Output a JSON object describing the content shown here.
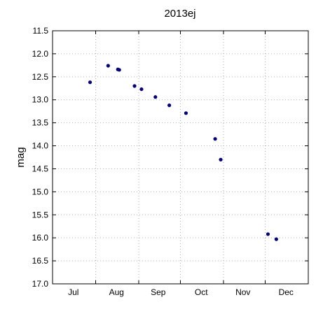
{
  "chart_data": {
    "type": "scatter",
    "title": "2013ej",
    "xlabel": "",
    "ylabel": "mag",
    "x_axis": {
      "kind": "date",
      "range": [
        "2013-07-01",
        "2014-01-01"
      ],
      "month_starts": [
        "2013-07-01",
        "2013-08-01",
        "2013-09-01",
        "2013-10-01",
        "2013-11-01",
        "2013-12-01",
        "2014-01-01"
      ],
      "month_labels": [
        {
          "label": "Jul",
          "date": "2013-07-16"
        },
        {
          "label": "Aug",
          "date": "2013-08-16"
        },
        {
          "label": "Sep",
          "date": "2013-09-15"
        },
        {
          "label": "Oct",
          "date": "2013-10-16"
        },
        {
          "label": "Nov",
          "date": "2013-11-15"
        },
        {
          "label": "Dec",
          "date": "2013-12-16"
        }
      ]
    },
    "ylim": [
      17.0,
      11.5
    ],
    "y_inverted": true,
    "yticks": [
      "11.5",
      "12.0",
      "12.5",
      "13.0",
      "13.5",
      "14.0",
      "14.5",
      "15.0",
      "15.5",
      "16.0",
      "16.5",
      "17.0"
    ],
    "grid": true,
    "marker_color": "#000080",
    "points": [
      {
        "x": "2013-07-28",
        "y": 12.62
      },
      {
        "x": "2013-08-10",
        "y": 12.26
      },
      {
        "x": "2013-08-17",
        "y": 12.34
      },
      {
        "x": "2013-08-18",
        "y": 12.35
      },
      {
        "x": "2013-08-29",
        "y": 12.7
      },
      {
        "x": "2013-09-03",
        "y": 12.77
      },
      {
        "x": "2013-09-13",
        "y": 12.94
      },
      {
        "x": "2013-09-23",
        "y": 13.12
      },
      {
        "x": "2013-10-05",
        "y": 13.29
      },
      {
        "x": "2013-10-26",
        "y": 13.85
      },
      {
        "x": "2013-10-30",
        "y": 14.3
      },
      {
        "x": "2013-12-03",
        "y": 15.92
      },
      {
        "x": "2013-12-09",
        "y": 16.03
      }
    ]
  }
}
